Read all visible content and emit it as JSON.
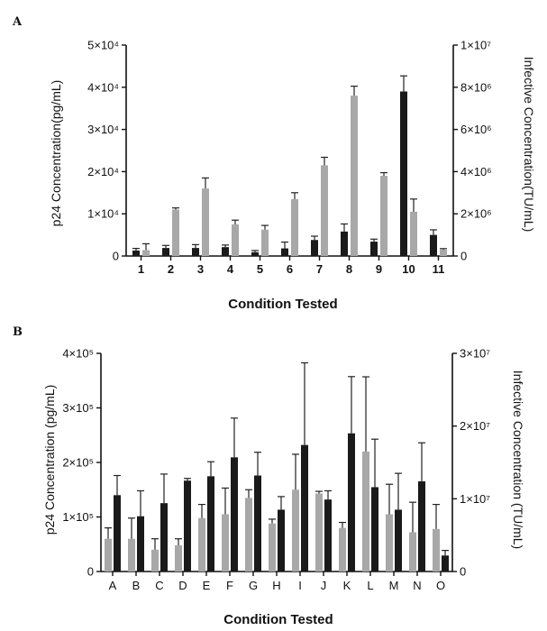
{
  "colors": {
    "dark": "#1a1a1a",
    "light": "#a8a8a8"
  },
  "chart_data": [
    {
      "type": "bar",
      "panel_label": "A",
      "categories": [
        "1",
        "2",
        "3",
        "4",
        "5",
        "6",
        "7",
        "8",
        "9",
        "10",
        "11"
      ],
      "xlabel": "Condition Tested",
      "ylabel_left": "p24 Concentration(pg/mL)",
      "ylabel_right": "Infective Concentration(TU/mL)",
      "ylim_left": [
        0,
        50000
      ],
      "ylim_right": [
        0,
        10000000
      ],
      "left_ticks": [
        "0",
        "1×10⁴",
        "2×10⁴",
        "3×10⁴",
        "4×10⁴",
        "5×10⁴"
      ],
      "right_ticks": [
        "0",
        "2×10⁶",
        "4×10⁶",
        "6×10⁶",
        "8×10⁶",
        "1×10⁷"
      ],
      "series": [
        {
          "axis": "left",
          "color": "dark",
          "values": [
            1300,
            1900,
            1900,
            2100,
            900,
            1800,
            3800,
            5800,
            3400,
            39000,
            5000
          ],
          "errors": [
            500,
            600,
            800,
            500,
            400,
            1500,
            900,
            1800,
            600,
            3700,
            1200
          ]
        },
        {
          "axis": "right",
          "color": "light",
          "values": [
            280000,
            2200000,
            3200000,
            1500000,
            1250000,
            2700000,
            4300000,
            7600000,
            3800000,
            2100000,
            300000
          ],
          "errors": [
            300000,
            80000,
            500000,
            200000,
            200000,
            300000,
            380000,
            450000,
            150000,
            600000,
            50000
          ]
        }
      ]
    },
    {
      "type": "bar",
      "panel_label": "B",
      "categories": [
        "A",
        "B",
        "C",
        "D",
        "E",
        "F",
        "G",
        "H",
        "I",
        "J",
        "K",
        "L",
        "M",
        "N",
        "O"
      ],
      "xlabel": "Condition Tested",
      "ylabel_left": "p24 Concentration (pg/mL)",
      "ylabel_right": "Infective Concentration (TU/mL)",
      "ylim_left": [
        0,
        400000
      ],
      "ylim_right": [
        0,
        30000000
      ],
      "left_ticks": [
        "0",
        "1×10⁵",
        "2×10⁵",
        "3×10⁵",
        "4×10⁵"
      ],
      "right_ticks": [
        "0",
        "1×10⁷",
        "2×10⁷",
        "3×10⁷"
      ],
      "series": [
        {
          "axis": "left",
          "color": "light",
          "values": [
            60000,
            60000,
            40000,
            48000,
            98000,
            105000,
            135000,
            88000,
            150000,
            143000,
            80000,
            220000,
            105000,
            72000,
            78000
          ],
          "errors": [
            20000,
            38000,
            20000,
            12000,
            25000,
            48000,
            15000,
            8000,
            65000,
            4000,
            10000,
            137000,
            55000,
            55000,
            45000
          ]
        },
        {
          "axis": "right",
          "color": "dark",
          "values": [
            10500000,
            7600000,
            9400000,
            12500000,
            13100000,
            15700000,
            13200000,
            8500000,
            17400000,
            9900000,
            19000000,
            11600000,
            8500000,
            12400000,
            2200000
          ],
          "errors": [
            2700000,
            3500000,
            4000000,
            300000,
            2000000,
            5400000,
            3200000,
            1800000,
            11300000,
            1200000,
            7800000,
            6600000,
            5000000,
            5300000,
            700000
          ]
        }
      ]
    }
  ]
}
